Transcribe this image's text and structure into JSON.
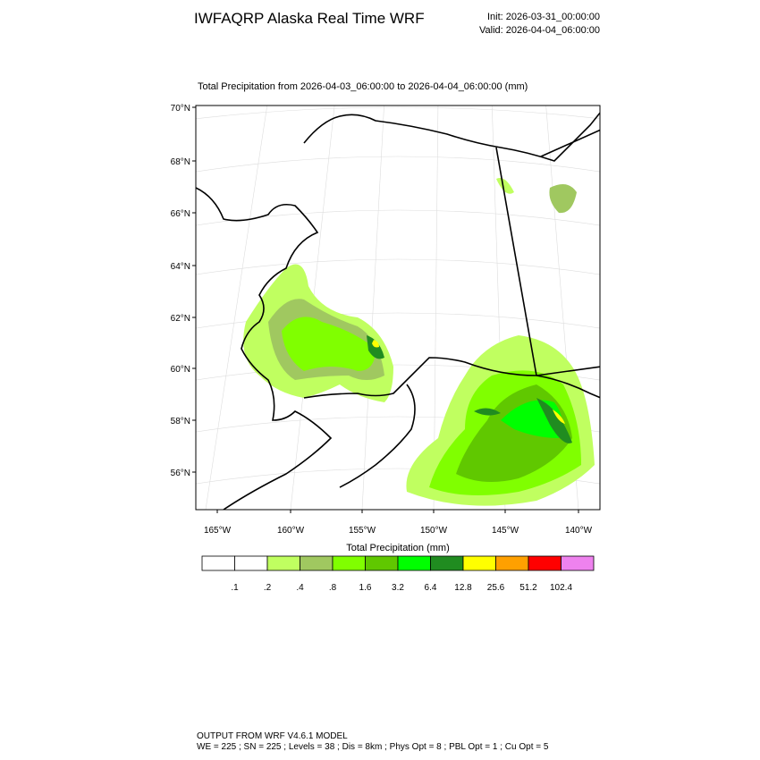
{
  "header": {
    "title": "IWFAQRP Alaska Real Time WRF",
    "init": "Init: 2026-03-31_00:00:00",
    "valid": "Valid: 2026-04-04_06:00:00"
  },
  "map": {
    "title": "Total Precipitation from 2026-04-03_06:00:00 to 2026-04-04_06:00:00   (mm)",
    "lat_labels": [
      "70°N",
      "68°N",
      "66°N",
      "64°N",
      "62°N",
      "60°N",
      "58°N",
      "56°N"
    ],
    "lon_labels": [
      "165°W",
      "160°W",
      "155°W",
      "150°W",
      "145°W",
      "140°W"
    ]
  },
  "colorbar": {
    "title": "Total Precipitation  (mm)",
    "colors": [
      "#ffffff",
      "#ffffff",
      "#c0ff60",
      "#a0c860",
      "#80ff00",
      "#60c800",
      "#00ff00",
      "#208c20",
      "#ffff00",
      "#ffa000",
      "#ff0000",
      "#ee82ee"
    ],
    "labels": [
      ".1",
      ".2",
      ".4",
      ".8",
      "1.6",
      "3.2",
      "6.4",
      "12.8",
      "25.6",
      "51.2",
      "102.4"
    ]
  },
  "footer": {
    "line1": "OUTPUT FROM WRF V4.6.1 MODEL",
    "line2": "WE = 225 ; SN = 225 ; Levels = 38 ; Dis = 8km ; Phys Opt = 8 ; PBL Opt = 1 ; Cu Opt = 5"
  }
}
